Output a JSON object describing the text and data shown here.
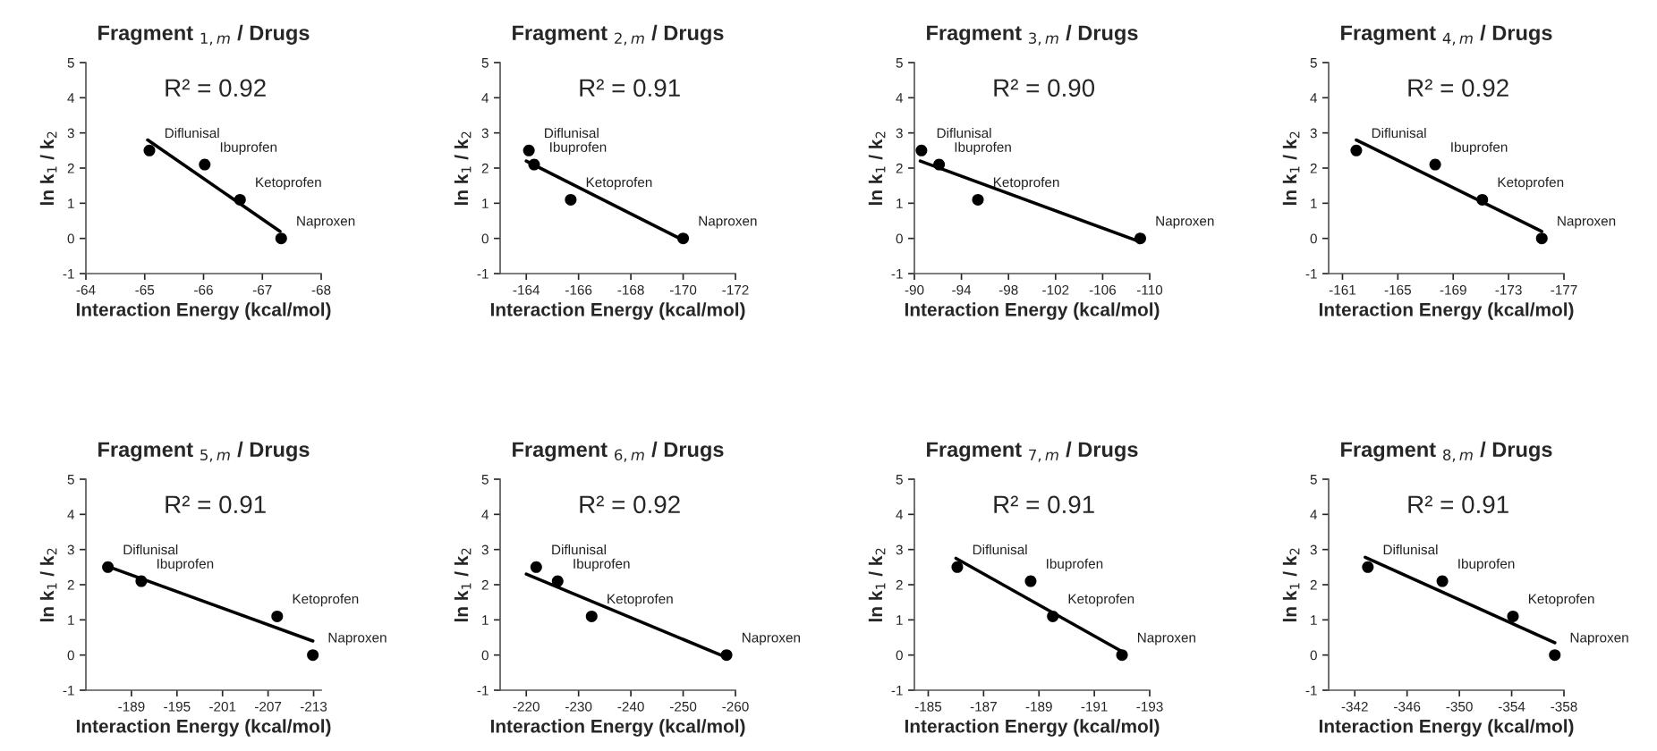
{
  "chart_data": [
    {
      "type": "scatter",
      "title": "Fragment $_{1,m}$ / Drugs",
      "xlabel": "Interaction Energy (kcal/mol)",
      "ylabel": "ln k$_{1}$ / k$_{2}$",
      "xlim": [
        -64,
        -68
      ],
      "xticks": [
        -64,
        -65,
        -66,
        -67,
        -68
      ],
      "ylim": [
        -1,
        5
      ],
      "yticks": [
        -1,
        0,
        1,
        2,
        3,
        4,
        5
      ],
      "series": [
        {
          "type": "scatter",
          "marker": "circle",
          "color": "#000000",
          "x": [
            -65.08,
            -66.02,
            -66.62,
            -67.32
          ],
          "values": [
            2.5,
            2.1,
            1.1,
            0
          ]
        },
        {
          "type": "line",
          "marker": "none",
          "color": "#000000",
          "line_style": "solid",
          "x": [
            -65.05,
            -67.3
          ],
          "values": [
            2.8,
            0.2
          ]
        }
      ],
      "annotations": [
        "R² = 0.92",
        {
          "text": "Diflunisal",
          "x": -65.08,
          "y": 2.5
        },
        {
          "text": "Ibuprofen",
          "x": -66.02,
          "y": 2.1
        },
        {
          "text": "Ketoprofen",
          "x": -66.62,
          "y": 1.1
        },
        {
          "text": "Naproxen",
          "x": -67.32,
          "y": 0
        }
      ]
    },
    {
      "type": "scatter",
      "title": "Fragment $_{2,m}$ / Drugs",
      "xlabel": "Interaction Energy (kcal/mol)",
      "ylabel": "ln k$_{1}$ / k$_{2}$",
      "xlim": [
        -163,
        -172
      ],
      "xticks": [
        -164,
        -166,
        -168,
        -170,
        -172
      ],
      "ylim": [
        -1,
        5
      ],
      "yticks": [
        -1,
        0,
        1,
        2,
        3,
        4,
        5
      ],
      "series": [
        {
          "type": "scatter",
          "marker": "circle",
          "color": "#000000",
          "x": [
            -164.1,
            -164.3,
            -165.7,
            -170.0
          ],
          "values": [
            2.5,
            2.1,
            1.1,
            0
          ]
        },
        {
          "type": "line",
          "marker": "none",
          "color": "#000000",
          "line_style": "solid",
          "x": [
            -164.0,
            -170.0
          ],
          "values": [
            2.2,
            -0.05
          ]
        }
      ],
      "annotations": [
        "R² = 0.91",
        {
          "text": "Diflunisal",
          "x": -164.1,
          "y": 2.5
        },
        {
          "text": "Ibuprofen",
          "x": -164.3,
          "y": 2.1
        },
        {
          "text": "Ketoprofen",
          "x": -165.7,
          "y": 1.1
        },
        {
          "text": "Naproxen",
          "x": -170.0,
          "y": 0
        }
      ]
    },
    {
      "type": "scatter",
      "title": "Fragment $_{3,m}$ / Drugs",
      "xlabel": "Interaction Energy (kcal/mol)",
      "ylabel": "ln k$_{1}$ / k$_{2}$",
      "xlim": [
        -90,
        -110
      ],
      "xticks": [
        -90,
        -94,
        -98,
        -102,
        -106,
        -110
      ],
      "ylim": [
        -1,
        5
      ],
      "yticks": [
        -1,
        0,
        1,
        2,
        3,
        4,
        5
      ],
      "series": [
        {
          "type": "scatter",
          "marker": "circle",
          "color": "#000000",
          "x": [
            -90.6,
            -92.1,
            -95.4,
            -109.2
          ],
          "values": [
            2.5,
            2.1,
            1.1,
            0
          ]
        },
        {
          "type": "line",
          "marker": "none",
          "color": "#000000",
          "line_style": "solid",
          "x": [
            -90.5,
            -109.2
          ],
          "values": [
            2.2,
            -0.1
          ]
        }
      ],
      "annotations": [
        "R² = 0.90",
        {
          "text": "Diflunisal",
          "x": -90.6,
          "y": 2.5
        },
        {
          "text": "Ibuprofen",
          "x": -92.1,
          "y": 2.1
        },
        {
          "text": "Ketoprofen",
          "x": -95.4,
          "y": 1.1
        },
        {
          "text": "Naproxen",
          "x": -109.2,
          "y": 0
        }
      ]
    },
    {
      "type": "scatter",
      "title": "Fragment $_{4,m}$ / Drugs",
      "xlabel": "Interaction Energy (kcal/mol)",
      "ylabel": "ln k$_{1}$ / k$_{2}$",
      "xlim": [
        -160,
        -177
      ],
      "xticks": [
        -161,
        -165,
        -169,
        -173,
        -177
      ],
      "ylim": [
        -1,
        5
      ],
      "yticks": [
        -1,
        0,
        1,
        2,
        3,
        4,
        5
      ],
      "series": [
        {
          "type": "scatter",
          "marker": "circle",
          "color": "#000000",
          "x": [
            -162.0,
            -167.7,
            -171.1,
            -175.4
          ],
          "values": [
            2.5,
            2.1,
            1.1,
            0
          ]
        },
        {
          "type": "line",
          "marker": "none",
          "color": "#000000",
          "line_style": "solid",
          "x": [
            -162.0,
            -175.4
          ],
          "values": [
            2.8,
            0.2
          ]
        }
      ],
      "annotations": [
        "R² = 0.92",
        {
          "text": "Diflunisal",
          "x": -162.0,
          "y": 2.5
        },
        {
          "text": "Ibuprofen",
          "x": -167.7,
          "y": 2.1
        },
        {
          "text": "Ketoprofen",
          "x": -171.1,
          "y": 1.1
        },
        {
          "text": "Naproxen",
          "x": -175.4,
          "y": 0
        }
      ]
    },
    {
      "type": "scatter",
      "title": "Fragment $_{5,m}$ / Drugs",
      "xlabel": "Interaction Energy (kcal/mol)",
      "ylabel": "ln k$_{1}$ / k$_{2}$",
      "xlim": [
        -183,
        -214
      ],
      "xticks": [
        -189,
        -195,
        -201,
        -207,
        -213
      ],
      "ylim": [
        -1,
        5
      ],
      "yticks": [
        -1,
        0,
        1,
        2,
        3,
        4,
        5
      ],
      "series": [
        {
          "type": "scatter",
          "marker": "circle",
          "color": "#000000",
          "x": [
            -185.9,
            -190.3,
            -208.2,
            -212.9
          ],
          "values": [
            2.5,
            2.1,
            1.1,
            0
          ]
        },
        {
          "type": "line",
          "marker": "none",
          "color": "#000000",
          "line_style": "solid",
          "x": [
            -185.5,
            -212.9
          ],
          "values": [
            2.55,
            0.4
          ]
        }
      ],
      "annotations": [
        "R² = 0.91",
        {
          "text": "Diflunisal",
          "x": -185.9,
          "y": 2.5
        },
        {
          "text": "Ibuprofen",
          "x": -190.3,
          "y": 2.1
        },
        {
          "text": "Ketoprofen",
          "x": -208.2,
          "y": 1.1
        },
        {
          "text": "Naproxen",
          "x": -212.9,
          "y": 0
        }
      ]
    },
    {
      "type": "scatter",
      "title": "Fragment $_{6,m}$ / Drugs",
      "xlabel": "Interaction Energy (kcal/mol)",
      "ylabel": "ln k$_{1}$ / k$_{2}$",
      "xlim": [
        -215,
        -260
      ],
      "xticks": [
        -220,
        -230,
        -240,
        -250,
        -260
      ],
      "ylim": [
        -1,
        5
      ],
      "yticks": [
        -1,
        0,
        1,
        2,
        3,
        4,
        5
      ],
      "series": [
        {
          "type": "scatter",
          "marker": "circle",
          "color": "#000000",
          "x": [
            -221.9,
            -226.0,
            -232.5,
            -258.3
          ],
          "values": [
            2.5,
            2.1,
            1.1,
            0
          ]
        },
        {
          "type": "line",
          "marker": "none",
          "color": "#000000",
          "line_style": "solid",
          "x": [
            -220.0,
            -258.0
          ],
          "values": [
            2.3,
            -0.05
          ]
        }
      ],
      "annotations": [
        "R² = 0.92",
        {
          "text": "Diflunisal",
          "x": -221.9,
          "y": 2.5
        },
        {
          "text": "Ibuprofen",
          "x": -226.0,
          "y": 2.1
        },
        {
          "text": "Ketoprofen",
          "x": -232.5,
          "y": 1.1
        },
        {
          "text": "Naproxen",
          "x": -258.3,
          "y": 0
        }
      ]
    },
    {
      "type": "scatter",
      "title": "Fragment $_{7,m}$ / Drugs",
      "xlabel": "Interaction Energy (kcal/mol)",
      "ylabel": "ln k$_{1}$ / k$_{2}$",
      "xlim": [
        -184.5,
        -193
      ],
      "xticks": [
        -185,
        -187,
        -189,
        -191,
        -193
      ],
      "ylim": [
        -1,
        5
      ],
      "yticks": [
        -1,
        0,
        1,
        2,
        3,
        4,
        5
      ],
      "series": [
        {
          "type": "scatter",
          "marker": "circle",
          "color": "#000000",
          "x": [
            -186.05,
            -188.7,
            -189.5,
            -192.0
          ],
          "values": [
            2.5,
            2.1,
            1.1,
            0
          ]
        },
        {
          "type": "line",
          "marker": "none",
          "color": "#000000",
          "line_style": "solid",
          "x": [
            -186.0,
            -192.0
          ],
          "values": [
            2.75,
            0.1
          ]
        }
      ],
      "annotations": [
        "R² = 0.91",
        {
          "text": "Diflunisal",
          "x": -186.05,
          "y": 2.5
        },
        {
          "text": "Ibuprofen",
          "x": -188.7,
          "y": 2.1
        },
        {
          "text": "Ketoprofen",
          "x": -189.5,
          "y": 1.1
        },
        {
          "text": "Naproxen",
          "x": -192.0,
          "y": 0
        }
      ]
    },
    {
      "type": "scatter",
      "title": "Fragment $_{8,m}$ / Drugs",
      "xlabel": "Interaction Energy (kcal/mol)",
      "ylabel": "ln k$_{1}$ / k$_{2}$",
      "xlim": [
        -340,
        -358
      ],
      "xticks": [
        -342,
        -346,
        -350,
        -354,
        -358
      ],
      "ylim": [
        -1,
        5
      ],
      "yticks": [
        -1,
        0,
        1,
        2,
        3,
        4,
        5
      ],
      "series": [
        {
          "type": "scatter",
          "marker": "circle",
          "color": "#000000",
          "x": [
            -343.0,
            -348.7,
            -354.1,
            -357.3
          ],
          "values": [
            2.5,
            2.1,
            1.1,
            0
          ]
        },
        {
          "type": "line",
          "marker": "none",
          "color": "#000000",
          "line_style": "solid",
          "x": [
            -342.8,
            -357.3
          ],
          "values": [
            2.78,
            0.35
          ]
        }
      ],
      "annotations": [
        "R² = 0.91",
        {
          "text": "Diflunisal",
          "x": -343.0,
          "y": 2.5
        },
        {
          "text": "Ibuprofen",
          "x": -348.7,
          "y": 2.1
        },
        {
          "text": "Ketoprofen",
          "x": -354.1,
          "y": 1.1
        },
        {
          "text": "Naproxen",
          "x": -357.3,
          "y": 0
        }
      ]
    }
  ]
}
